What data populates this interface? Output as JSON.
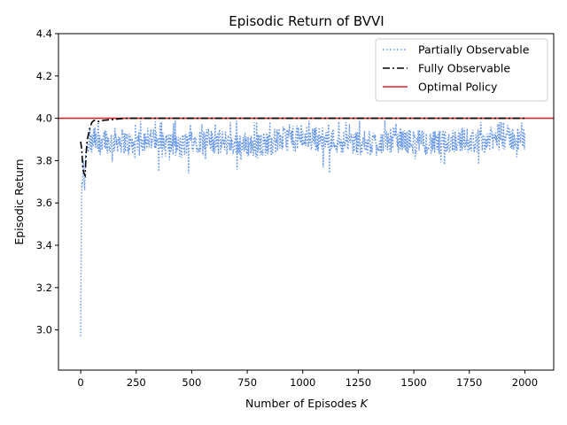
{
  "chart_data": {
    "type": "line",
    "title": "Episodic Return of BVVI",
    "xlabel_main": "Number of Episodes ",
    "xlabel_var": "K",
    "ylabel": "Episodic Return",
    "xlim": [
      -100,
      2130
    ],
    "ylim": [
      2.81,
      4.4
    ],
    "xticks": [
      0,
      250,
      500,
      750,
      1000,
      1250,
      1500,
      1750,
      2000
    ],
    "yticks": [
      3.0,
      3.2,
      3.4,
      3.6,
      3.8,
      4.0,
      4.2,
      4.4
    ],
    "xtick_labels": [
      "0",
      "250",
      "500",
      "750",
      "1000",
      "1250",
      "1500",
      "1750",
      "2000"
    ],
    "ytick_labels": [
      "3.0",
      "3.2",
      "3.4",
      "3.6",
      "3.8",
      "4.0",
      "4.2",
      "4.4"
    ],
    "grid": false,
    "legend_position": "top-right",
    "colors": {
      "partially": "#6495ed",
      "fully": "#000000",
      "optimal": "#d62728"
    },
    "series": [
      {
        "name": "Partially Observable",
        "style": "dotted",
        "description": "noisy returns fluctuating mostly between 3.75 and 3.98",
        "x": [
          0,
          2,
          4,
          6,
          8,
          10,
          12,
          15,
          18,
          22,
          26,
          30,
          35,
          40,
          50,
          60,
          80,
          100,
          130,
          160,
          200,
          250,
          300,
          350,
          400,
          450,
          500,
          600,
          700,
          800,
          900,
          1000,
          1100,
          1200,
          1300,
          1400,
          1500,
          1600,
          1700,
          1800,
          1900,
          2000
        ],
        "values": [
          2.97,
          3.35,
          3.62,
          3.7,
          3.68,
          3.75,
          3.8,
          3.72,
          3.66,
          3.82,
          3.86,
          3.88,
          3.84,
          3.9,
          3.87,
          3.91,
          3.86,
          3.92,
          3.88,
          3.9,
          3.89,
          3.86,
          3.92,
          3.87,
          3.88,
          3.86,
          3.9,
          3.89,
          3.88,
          3.87,
          3.9,
          3.91,
          3.9,
          3.89,
          3.88,
          3.9,
          3.89,
          3.88,
          3.9,
          3.89,
          3.91,
          3.9
        ]
      },
      {
        "name": "Fully Observable",
        "style": "dashdot",
        "x": [
          0,
          5,
          10,
          15,
          20,
          25,
          30,
          40,
          50,
          60,
          80,
          100,
          150,
          200,
          300,
          500,
          1000,
          1500,
          2000
        ],
        "values": [
          3.89,
          3.85,
          3.76,
          3.74,
          3.73,
          3.84,
          3.9,
          3.95,
          3.98,
          3.99,
          3.985,
          3.99,
          3.995,
          4.0,
          4.0,
          4.0,
          4.0,
          4.0,
          4.0
        ]
      },
      {
        "name": "Optimal Policy",
        "style": "solid",
        "type": "hline",
        "y": 4.0
      }
    ]
  }
}
